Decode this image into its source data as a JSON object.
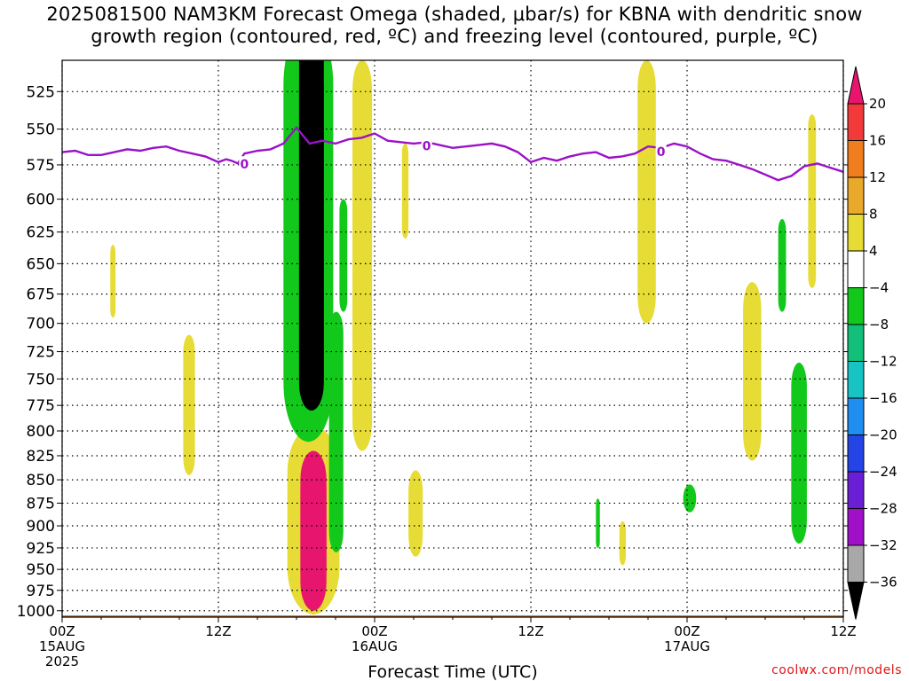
{
  "title": {
    "line1": "2025081500 NAM3KM Forecast Omega (shaded, μbar/s) for KBNA with dendritic snow",
    "line2": "growth region (contoured, red, ºC) and freezing level (contoured, purple, ºC)"
  },
  "credit": "coolwx.com/models",
  "chart_data": {
    "type": "heatmap",
    "title": "2025081500 NAM3KM Forecast Omega (shaded, μbar/s) for KBNA with dendritic snow growth region (contoured, red, ºC) and freezing level (contoured, purple, ºC)",
    "xlabel": "Forecast Time (UTC)",
    "ylabel": "",
    "x_unit": "hours after 2025-08-15 00Z",
    "xlim": [
      0,
      60
    ],
    "ylim": [
      1000,
      500
    ],
    "y_scale": "log-pressure (hPa, inverted)",
    "x_ticks": [
      {
        "x": 0,
        "label": "00Z",
        "sub": "15AUG",
        "sub2": "2025"
      },
      {
        "x": 12,
        "label": "12Z",
        "sub": "",
        "sub2": ""
      },
      {
        "x": 24,
        "label": "00Z",
        "sub": "16AUG",
        "sub2": ""
      },
      {
        "x": 36,
        "label": "12Z",
        "sub": "",
        "sub2": ""
      },
      {
        "x": 48,
        "label": "00Z",
        "sub": "17AUG",
        "sub2": ""
      },
      {
        "x": 60,
        "label": "12Z",
        "sub": "",
        "sub2": ""
      }
    ],
    "y_ticks": [
      525,
      550,
      575,
      600,
      625,
      650,
      675,
      700,
      725,
      750,
      775,
      800,
      825,
      850,
      875,
      900,
      925,
      950,
      975,
      1000
    ],
    "grid": true,
    "colorbar": {
      "levels": [
        -36,
        -32,
        -28,
        -24,
        -20,
        -16,
        -12,
        -8,
        -4,
        4,
        8,
        12,
        16,
        20
      ],
      "labels": [
        "20",
        "16",
        "12",
        "8",
        "4",
        "−4",
        "−8",
        "−12",
        "−16",
        "−20",
        "−24",
        "−28",
        "−32",
        "−36"
      ],
      "colors": {
        "above20": "#e8156e",
        "16_20": "#f23a3a",
        "12_16": "#f07d1e",
        "8_12": "#e9aa2c",
        "4_8": "#e6dc35",
        "m4_4": "#ffffff",
        "m8_m4": "#12c81a",
        "m12_m8": "#12c07a",
        "m16_m12": "#17c3c3",
        "m20_m16": "#1f8ef0",
        "m24_m20": "#2444e6",
        "m28_m24": "#6a1ed6",
        "m32_m28": "#a010c8",
        "m36_m32": "#a8a8a8",
        "below_m36": "#000000"
      }
    },
    "freezing_level": {
      "label": "0",
      "color": "#9a12c8",
      "points": [
        [
          0,
          566
        ],
        [
          1,
          565
        ],
        [
          2,
          568
        ],
        [
          3,
          568
        ],
        [
          4,
          566
        ],
        [
          5,
          564
        ],
        [
          6,
          565
        ],
        [
          7,
          563
        ],
        [
          8,
          562
        ],
        [
          9,
          565
        ],
        [
          10,
          567
        ],
        [
          11,
          569
        ],
        [
          12,
          573
        ],
        [
          12.6,
          571
        ],
        [
          13,
          572
        ],
        [
          13.5,
          574
        ],
        [
          14,
          567
        ],
        [
          15,
          565
        ],
        [
          16,
          564
        ],
        [
          17,
          560
        ],
        [
          18,
          549
        ],
        [
          19,
          560
        ],
        [
          20,
          558
        ],
        [
          21,
          560
        ],
        [
          22,
          557
        ],
        [
          23,
          556
        ],
        [
          24,
          553
        ],
        [
          25,
          558
        ],
        [
          26,
          559
        ],
        [
          27,
          560
        ],
        [
          28,
          559
        ],
        [
          29,
          561
        ],
        [
          30,
          563
        ],
        [
          31,
          562
        ],
        [
          32,
          561
        ],
        [
          33,
          560
        ],
        [
          34,
          562
        ],
        [
          35,
          566
        ],
        [
          36,
          573
        ],
        [
          37,
          570
        ],
        [
          38,
          572
        ],
        [
          39,
          569
        ],
        [
          40,
          567
        ],
        [
          41,
          566
        ],
        [
          42,
          570
        ],
        [
          43,
          569
        ],
        [
          44,
          567
        ],
        [
          45,
          562
        ],
        [
          46,
          563
        ],
        [
          47,
          560
        ],
        [
          48,
          562
        ],
        [
          49,
          567
        ],
        [
          50,
          571
        ],
        [
          51,
          572
        ],
        [
          52,
          575
        ],
        [
          53,
          578
        ],
        [
          54,
          582
        ],
        [
          55,
          586
        ],
        [
          56,
          583
        ],
        [
          57,
          576
        ],
        [
          58,
          574
        ],
        [
          59,
          577
        ],
        [
          60,
          580
        ]
      ],
      "contour_label_x": [
        14,
        28,
        46
      ]
    },
    "cells": [
      {
        "level": "above20",
        "hours": [
          18.3,
          20.3
        ],
        "pressure": [
          820,
          1000
        ],
        "note": "strong descent"
      },
      {
        "level": "below_m36",
        "hours": [
          18.2,
          20.1
        ],
        "pressure": [
          500,
          780
        ],
        "note": "strong ascent"
      },
      {
        "level": "m8_m4",
        "hours": [
          20.5,
          21.6
        ],
        "pressure": [
          690,
          930
        ]
      },
      {
        "level": "m8_m4",
        "hours": [
          21.3,
          21.9
        ],
        "pressure": [
          600,
          690
        ]
      },
      {
        "level": "m8_m4",
        "hours": [
          55.0,
          55.6
        ],
        "pressure": [
          615,
          690
        ]
      },
      {
        "level": "m8_m4",
        "hours": [
          56.0,
          57.2
        ],
        "pressure": [
          735,
          920
        ]
      },
      {
        "level": "m8_m4",
        "hours": [
          47.7,
          48.7
        ],
        "pressure": [
          855,
          885
        ]
      },
      {
        "level": "m8_m4",
        "hours": [
          41.0,
          41.3
        ],
        "pressure": [
          870,
          925
        ]
      },
      {
        "level": "4_8",
        "hours": [
          22.3,
          23.8
        ],
        "pressure": [
          505,
          820
        ]
      },
      {
        "level": "4_8",
        "hours": [
          3.7,
          4.1
        ],
        "pressure": [
          635,
          695
        ]
      },
      {
        "level": "4_8",
        "hours": [
          9.3,
          10.2
        ],
        "pressure": [
          710,
          845
        ]
      },
      {
        "level": "4_8",
        "hours": [
          26.1,
          26.6
        ],
        "pressure": [
          560,
          630
        ]
      },
      {
        "level": "4_8",
        "hours": [
          26.6,
          27.7
        ],
        "pressure": [
          840,
          935
        ]
      },
      {
        "level": "4_8",
        "hours": [
          42.8,
          43.3
        ],
        "pressure": [
          895,
          945
        ]
      },
      {
        "level": "4_8",
        "hours": [
          44.2,
          45.6
        ],
        "pressure": [
          505,
          700
        ]
      },
      {
        "level": "4_8",
        "hours": [
          52.3,
          53.7
        ],
        "pressure": [
          665,
          830
        ]
      },
      {
        "level": "4_8",
        "hours": [
          57.3,
          57.9
        ],
        "pressure": [
          540,
          670
        ]
      }
    ],
    "terrain": {
      "color": "#a05a28",
      "pressure_top": 1006
    }
  }
}
